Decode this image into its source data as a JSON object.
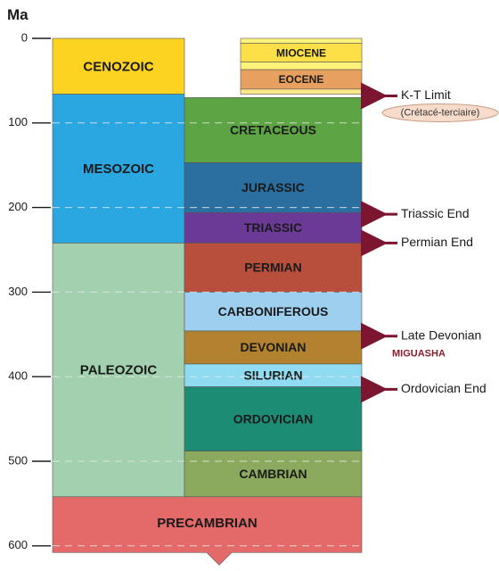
{
  "axis": {
    "unit": "Ma",
    "ticks": [
      0,
      100,
      200,
      300,
      400,
      500,
      600
    ]
  },
  "eras": [
    {
      "name": "CENOZOIC",
      "start": 0,
      "end": 66,
      "color": "#fcd320"
    },
    {
      "name": "MESOZOIC",
      "start": 66,
      "end": 242,
      "color": "#2aa6e0"
    },
    {
      "name": "PALEOZOIC",
      "start": 242,
      "end": 542,
      "color": "#a3d1b0"
    }
  ],
  "periods": [
    {
      "name": "CRETACEOUS",
      "start": 70,
      "end": 147,
      "color": "#5da544"
    },
    {
      "name": "JURASSIC",
      "start": 147,
      "end": 206,
      "color": "#2a6fa0"
    },
    {
      "name": "TRIASSIC",
      "start": 206,
      "end": 242,
      "color": "#6b3a96"
    },
    {
      "name": "PERMIAN",
      "start": 242,
      "end": 300,
      "color": "#b84f3d"
    },
    {
      "name": "CARBONIFEROUS",
      "start": 300,
      "end": 346,
      "color": "#9ecfee"
    },
    {
      "name": "DEVONIAN",
      "start": 346,
      "end": 385,
      "color": "#b2822e"
    },
    {
      "name": "SILURIAN",
      "start": 385,
      "end": 412,
      "color": "#8fdcf2"
    },
    {
      "name": "ORDOVICIAN",
      "start": 412,
      "end": 488,
      "color": "#1d8c75"
    },
    {
      "name": "CAMBRIAN",
      "start": 488,
      "end": 542,
      "color": "#8caa5e"
    }
  ],
  "epochs": [
    {
      "name": "",
      "start": 0,
      "end": 6,
      "color": "#fff27a"
    },
    {
      "name": "MIOCENE",
      "start": 6,
      "end": 28,
      "color": "#fde047"
    },
    {
      "name": "",
      "start": 28,
      "end": 37,
      "color": "#fff27a"
    },
    {
      "name": "EOCENE",
      "start": 37,
      "end": 60,
      "color": "#e8a060"
    },
    {
      "name": "",
      "start": 60,
      "end": 66,
      "color": "#fde68a"
    }
  ],
  "precambrian": {
    "name": "PRECAMBRIAN",
    "start": 542,
    "end": 608,
    "color": "#e46a6a"
  },
  "events": [
    {
      "label": "K-T Limit",
      "sublabel": "(Crétacé-terciaire)",
      "age": 68
    },
    {
      "label": "Triassic End",
      "sublabel": "",
      "age": 208
    },
    {
      "label": "Permian End",
      "sublabel": "",
      "age": 242
    },
    {
      "label": "Late Devonian",
      "sublabel": "MIGUASHA",
      "age": 352
    },
    {
      "label": "Ordovician End",
      "sublabel": "",
      "age": 415
    }
  ],
  "colors": {
    "arrow": "#7b1530",
    "site_label": "#8b1d2c",
    "ellipse_fill": "#f7dccb",
    "ellipse_stroke": "#c89c86",
    "gridline": "#e6e6e6"
  }
}
